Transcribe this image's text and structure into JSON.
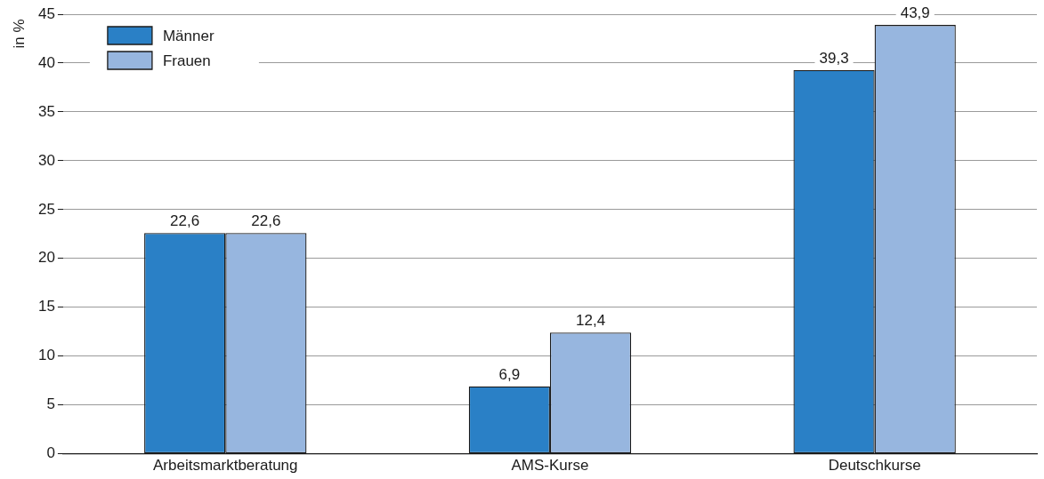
{
  "chart_data": {
    "type": "bar",
    "ylabel": "in %",
    "categories": [
      "Arbeitsmarktberatung",
      "AMS-Kurse",
      "Deutschkurse"
    ],
    "series": [
      {
        "name": "Männer",
        "color": "#2a80c6",
        "values": [
          22.6,
          6.9,
          39.3
        ],
        "value_labels": [
          "22,6",
          "6,9",
          "39,3"
        ]
      },
      {
        "name": "Frauen",
        "color": "#97b6df",
        "values": [
          22.6,
          12.4,
          43.9
        ],
        "value_labels": [
          "22,6",
          "12,4",
          "43,9"
        ]
      }
    ],
    "ylim": [
      0,
      45
    ],
    "yticks": [
      0,
      5,
      10,
      15,
      20,
      25,
      30,
      35,
      40,
      45
    ],
    "grid": "y",
    "legend": "top left"
  }
}
